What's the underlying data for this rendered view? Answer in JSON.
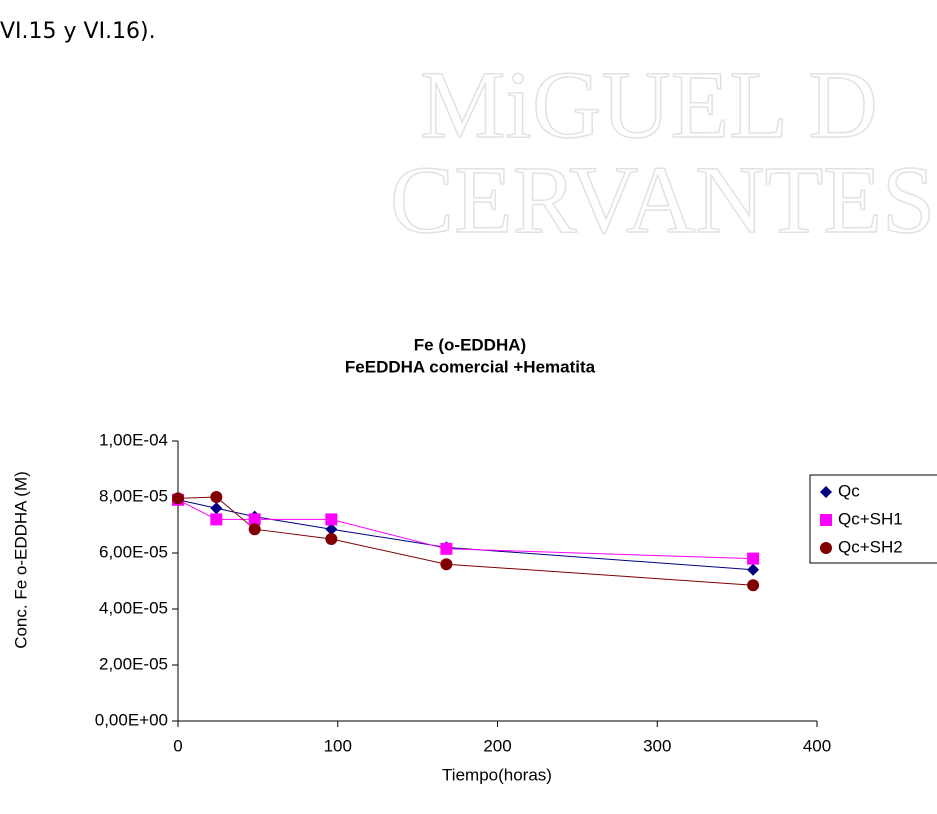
{
  "text": "VI.15 y VI.16).",
  "watermark": [
    "MiGUEL D",
    "CERVANTES"
  ],
  "chart_data": {
    "type": "line",
    "title": "Fe (o-EDDHA)",
    "subtitle": "FeEDDHA comercial +Hematita",
    "xlabel": "Tiempo(horas)",
    "ylabel": "Conc. Fe o-EDDHA (M)",
    "x": [
      0,
      24,
      48,
      96,
      168,
      360
    ],
    "series": [
      {
        "name": "Qc",
        "color": "#000080",
        "marker": "diamond",
        "values": [
          7.9e-05,
          7.6e-05,
          7.3e-05,
          6.85e-05,
          6.2e-05,
          5.4e-05
        ]
      },
      {
        "name": "Qc+SH1",
        "color": "#ff00ff",
        "marker": "square",
        "values": [
          7.9e-05,
          7.2e-05,
          7.2e-05,
          7.2e-05,
          6.15e-05,
          5.8e-05
        ]
      },
      {
        "name": "Qc+SH2",
        "color": "#800000",
        "marker": "circle",
        "values": [
          7.95e-05,
          8e-05,
          6.85e-05,
          6.5e-05,
          5.6e-05,
          4.85e-05
        ]
      }
    ],
    "xlim": [
      0,
      400
    ],
    "xticks": [
      0,
      100,
      200,
      300,
      400
    ],
    "ylim": [
      0,
      0.0001
    ],
    "yticks": [
      {
        "value": 0,
        "label": "0,00E+00"
      },
      {
        "value": 2e-05,
        "label": "2,00E-05"
      },
      {
        "value": 4e-05,
        "label": "4,00E-05"
      },
      {
        "value": 6e-05,
        "label": "6,00E-05"
      },
      {
        "value": 8e-05,
        "label": "8,00E-05"
      },
      {
        "value": 0.0001,
        "label": "1,00E-04"
      }
    ],
    "legend": "right"
  }
}
